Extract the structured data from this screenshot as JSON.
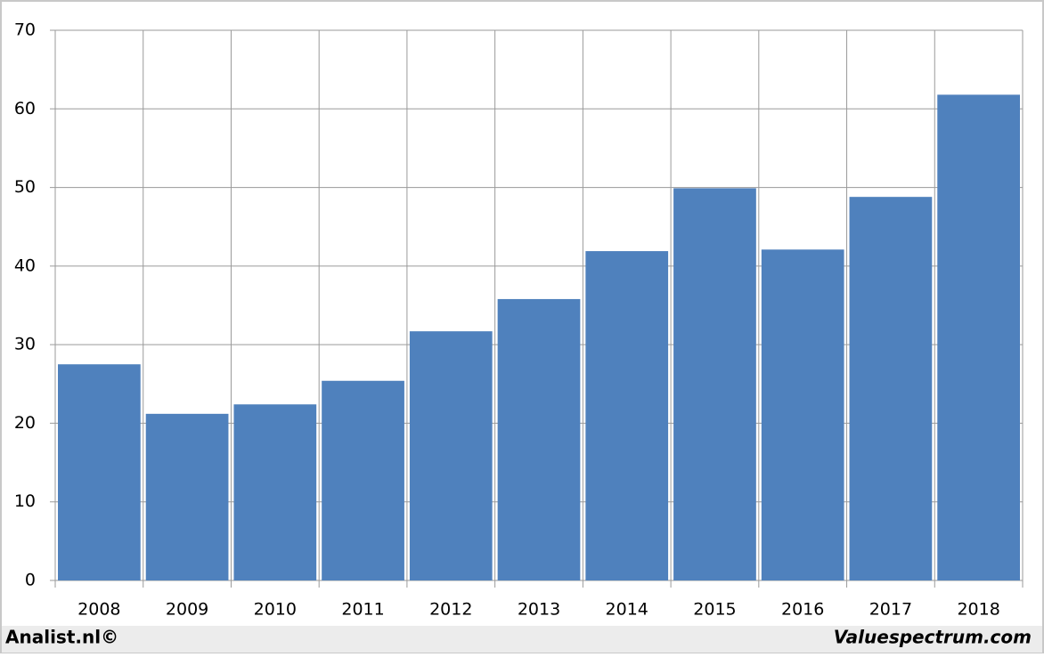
{
  "chart_data": {
    "type": "bar",
    "categories": [
      "2008",
      "2009",
      "2010",
      "2011",
      "2012",
      "2013",
      "2014",
      "2015",
      "2016",
      "2017",
      "2018"
    ],
    "values": [
      27.5,
      21.2,
      22.4,
      25.4,
      31.7,
      35.8,
      41.9,
      49.9,
      42.1,
      48.8,
      61.8
    ],
    "color": "#4f81bd",
    "ylim": [
      0,
      70
    ],
    "yticks": [
      0,
      10,
      20,
      30,
      40,
      50,
      60,
      70
    ],
    "grid": true
  },
  "footer": {
    "left": "Analist.nl©",
    "right": "Valuespectrum.com"
  }
}
